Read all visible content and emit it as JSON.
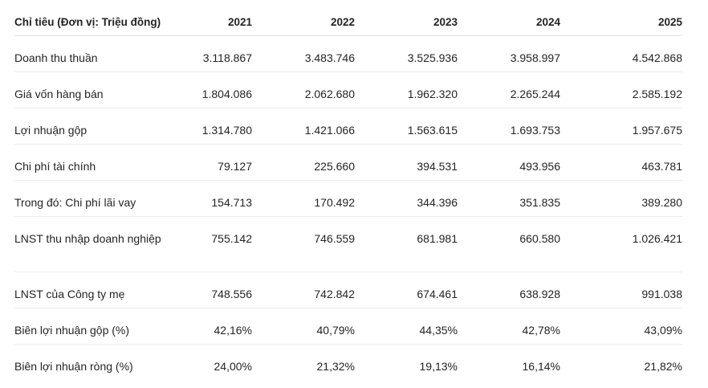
{
  "table": {
    "header_label": "Chỉ tiêu (Đơn vị: Triệu đồng)",
    "years": [
      "2021",
      "2022",
      "2023",
      "2024",
      "2025"
    ],
    "rows": [
      {
        "label": "Doanh thu thuần",
        "values": [
          "3.118.867",
          "3.483.746",
          "3.525.936",
          "3.958.997",
          "4.542.868"
        ]
      },
      {
        "label": "Giá vốn hàng bán",
        "values": [
          "1.804.086",
          "2.062.680",
          "1.962.320",
          "2.265.244",
          "2.585.192"
        ]
      },
      {
        "label": "Lợi nhuận gộp",
        "values": [
          "1.314.780",
          "1.421.066",
          "1.563.615",
          "1.693.753",
          "1.957.675"
        ]
      },
      {
        "label": "Chi phí tài chính",
        "values": [
          "79.127",
          "225.660",
          "394.531",
          "493.956",
          "463.781"
        ]
      },
      {
        "label": "Trong đó: Chi phí lãi vay",
        "values": [
          "154.713",
          "170.492",
          "344.396",
          "351.835",
          "389.280"
        ]
      },
      {
        "label": "LNST thu nhập doanh nghiệp",
        "values": [
          "755.142",
          "746.559",
          "681.981",
          "660.580",
          "1.026.421"
        ]
      },
      {
        "label": "LNST của Công ty mẹ",
        "values": [
          "748.556",
          "742.842",
          "674.461",
          "638.928",
          "991.038"
        ]
      },
      {
        "label": "Biên lợi nhuận gộp (%)",
        "values": [
          "42,16%",
          "40,79%",
          "44,35%",
          "42,78%",
          "43,09%"
        ]
      },
      {
        "label": "Biên lợi nhuận ròng (%)",
        "values": [
          "24,00%",
          "21,32%",
          "19,13%",
          "16,14%",
          "21,82%"
        ]
      }
    ]
  }
}
